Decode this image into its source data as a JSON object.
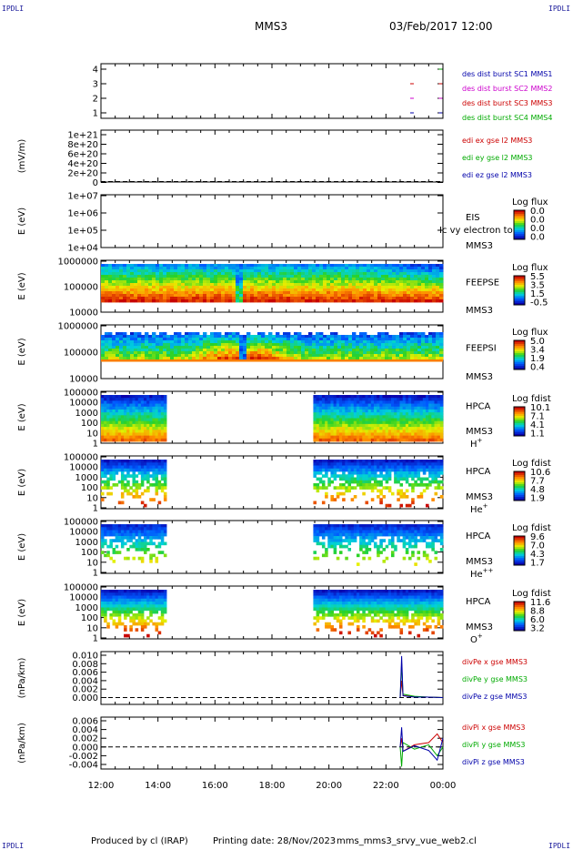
{
  "corner_labels": {
    "top_left": "IPDLI",
    "top_right": "IPDLI",
    "bottom_left": "IPDLI",
    "bottom_right": "IPDLI"
  },
  "header": {
    "title": "MMS3",
    "datetime": "03/Feb/2017 12:00"
  },
  "footer": {
    "produced_by": "Produced by cl (IRAP)",
    "printing_date": "Printing date: 28/Nov/2023",
    "plot_name": "mms_mms3_srvy_vue_web2.cl"
  },
  "overlay_text": "Ic vy electron to",
  "x_axis": {
    "ticks": [
      "12:00",
      "14:00",
      "16:00",
      "18:00",
      "20:00",
      "22:00",
      "00:00"
    ]
  },
  "chart_data": [
    {
      "type": "line",
      "panel": "burst",
      "yticks": [
        "4",
        "3",
        "2",
        "1"
      ],
      "ylim": [
        0.5,
        4.5
      ],
      "legend": [
        {
          "text": "des dist burst SC1 MMS1",
          "color": "#0000aa"
        },
        {
          "text": "des dist burst SC2 MMS2",
          "color": "#cc00cc"
        },
        {
          "text": "des dist burst SC3 MMS3",
          "color": "#cc0000"
        },
        {
          "text": "des dist burst SC4 MMS4",
          "color": "#00aa00"
        }
      ],
      "series": [
        {
          "name": "des dist burst SC1 MMS1",
          "level": 1,
          "hours": [
            22.85,
            23.85
          ]
        },
        {
          "name": "des dist burst SC2 MMS2",
          "level": 2,
          "hours": [
            22.85,
            23.85
          ]
        },
        {
          "name": "des dist burst SC3 MMS3",
          "level": 3,
          "hours": [
            22.85,
            23.85
          ]
        },
        {
          "name": "des dist burst SC4 MMS4",
          "level": 4,
          "hours": [
            23.85
          ]
        }
      ]
    },
    {
      "type": "line",
      "panel": "edi",
      "ylabel": "(mV/m)",
      "yticks": [
        "1e+21",
        "8e+20",
        "6e+20",
        "4e+20",
        "2e+20",
        "0"
      ],
      "ylim": [
        0,
        1e+21
      ],
      "legend": [
        {
          "text": "edi ex gse l2 MMS3",
          "color": "#cc0000"
        },
        {
          "text": "edi ey gse l2 MMS3",
          "color": "#00aa00"
        },
        {
          "text": "edi ez gse l2 MMS3",
          "color": "#0000aa"
        }
      ],
      "series": []
    },
    {
      "type": "heatmap",
      "panel": "eis",
      "ylabel": "E (eV)",
      "yticks": [
        "1e+07",
        "1e+06",
        "1e+05",
        "1e+04"
      ],
      "instrument": "EIS",
      "spacecraft": "MMS3",
      "colorbar": {
        "title": "Log flux",
        "ticks": [
          "0.0",
          "0.0",
          "0.0",
          "0.0"
        ]
      }
    },
    {
      "type": "heatmap",
      "panel": "feepse",
      "ylabel": "E (eV)",
      "yticks": [
        "1000000",
        "100000",
        "10000"
      ],
      "instrument": "FEEPSE",
      "spacecraft": "MMS3",
      "colorbar": {
        "title": "Log flux",
        "ticks": [
          "5.5",
          "3.5",
          "1.5",
          "-0.5"
        ]
      },
      "data_hours": [
        12.0,
        24.0
      ]
    },
    {
      "type": "heatmap",
      "panel": "feepsi",
      "ylabel": "E (eV)",
      "yticks": [
        "1000000",
        "100000",
        "10000"
      ],
      "instrument": "FEEPSI",
      "spacecraft": "MMS3",
      "colorbar": {
        "title": "Log flux",
        "ticks": [
          "5.0",
          "3.4",
          "1.9",
          "0.4"
        ]
      },
      "data_hours": [
        12.0,
        24.0
      ]
    },
    {
      "type": "heatmap",
      "panel": "hpca_h",
      "ylabel": "E (eV)",
      "yticks": [
        "100000",
        "10000",
        "1000",
        "100",
        "10",
        "1"
      ],
      "instrument": "HPCA",
      "spacecraft": "MMS3",
      "species": "H+",
      "colorbar": {
        "title": "Log fdist",
        "ticks": [
          "10.1",
          "7.1",
          "4.1",
          "1.1"
        ]
      },
      "data_hours": [
        [
          12.0,
          14.3
        ],
        [
          19.45,
          24.0
        ]
      ]
    },
    {
      "type": "heatmap",
      "panel": "hpca_he",
      "ylabel": "E (eV)",
      "yticks": [
        "100000",
        "10000",
        "1000",
        "100",
        "10",
        "1"
      ],
      "instrument": "HPCA",
      "spacecraft": "MMS3",
      "species": "He+",
      "colorbar": {
        "title": "Log fdist",
        "ticks": [
          "10.6",
          "7.7",
          "4.8",
          "1.9"
        ]
      },
      "data_hours": [
        [
          12.0,
          14.3
        ],
        [
          19.45,
          24.0
        ]
      ]
    },
    {
      "type": "heatmap",
      "panel": "hpca_he2",
      "ylabel": "E (eV)",
      "yticks": [
        "100000",
        "10000",
        "1000",
        "100",
        "10",
        "1"
      ],
      "instrument": "HPCA",
      "spacecraft": "MMS3",
      "species": "He++",
      "colorbar": {
        "title": "Log fdist",
        "ticks": [
          "9.6",
          "7.0",
          "4.3",
          "1.7"
        ]
      },
      "data_hours": [
        [
          12.0,
          14.3
        ],
        [
          19.45,
          24.0
        ]
      ]
    },
    {
      "type": "heatmap",
      "panel": "hpca_o",
      "ylabel": "E (eV)",
      "yticks": [
        "100000",
        "10000",
        "1000",
        "100",
        "10",
        "1"
      ],
      "instrument": "HPCA",
      "spacecraft": "MMS3",
      "species": "O+",
      "colorbar": {
        "title": "Log fdist",
        "ticks": [
          "11.6",
          "8.8",
          "6.0",
          "3.2"
        ]
      },
      "data_hours": [
        [
          12.0,
          14.3
        ],
        [
          19.45,
          24.0
        ]
      ]
    },
    {
      "type": "line",
      "panel": "divpe",
      "ylabel": "(nPa/km)",
      "yticks": [
        "0.010",
        "0.008",
        "0.006",
        "0.004",
        "0.002",
        "0.000"
      ],
      "ylim": [
        -0.001,
        0.01
      ],
      "legend": [
        {
          "text": "divPe x gse MMS3",
          "color": "#cc0000"
        },
        {
          "text": "divPe y gse MMS3",
          "color": "#00aa00"
        },
        {
          "text": "divPe z gse MMS3",
          "color": "#0000aa"
        }
      ],
      "series": [
        {
          "name": "divPe x gse MMS3",
          "x": [
            22.5,
            22.55,
            22.6,
            23.0,
            23.5,
            24.0
          ],
          "y": [
            0.0,
            0.004,
            0.0005,
            0.0002,
            0.0001,
            0.0
          ]
        },
        {
          "name": "divPe y gse MMS3",
          "x": [
            22.5,
            22.55,
            22.6,
            23.0,
            23.5,
            24.0
          ],
          "y": [
            0.0,
            0.008,
            0.0008,
            0.0003,
            0.0001,
            0.0
          ]
        },
        {
          "name": "divPe z gse MMS3",
          "x": [
            22.5,
            22.55,
            22.6,
            23.0,
            23.5,
            24.0
          ],
          "y": [
            0.0,
            0.0098,
            0.0004,
            0.0001,
            0.0001,
            0.0
          ]
        }
      ]
    },
    {
      "type": "line",
      "panel": "divpi",
      "ylabel": "(nPa/km)",
      "yticks": [
        "0.006",
        "0.004",
        "0.002",
        "0.000",
        "-0.002",
        "-0.004"
      ],
      "ylim": [
        -0.005,
        0.006
      ],
      "legend": [
        {
          "text": "divPi x gse MMS3",
          "color": "#cc0000"
        },
        {
          "text": "divPi y gse MMS3",
          "color": "#00aa00"
        },
        {
          "text": "divPi z gse MMS3",
          "color": "#0000aa"
        }
      ],
      "series": [
        {
          "name": "divPi x gse MMS3",
          "x": [
            22.5,
            22.55,
            22.6,
            23.0,
            23.5,
            23.8,
            24.0
          ],
          "y": [
            0.0,
            0.002,
            -0.001,
            0.0005,
            0.001,
            0.003,
            0.001
          ]
        },
        {
          "name": "divPi y gse MMS3",
          "x": [
            22.5,
            22.55,
            22.6,
            23.0,
            23.5,
            23.8,
            24.0
          ],
          "y": [
            0.0,
            -0.0045,
            0.001,
            -0.0005,
            0.0005,
            -0.002,
            0.0
          ]
        },
        {
          "name": "divPi z gse MMS3",
          "x": [
            22.5,
            22.55,
            22.6,
            23.0,
            23.5,
            23.8,
            24.0
          ],
          "y": [
            0.0,
            0.0045,
            -0.001,
            0.0003,
            -0.0008,
            -0.003,
            0.002
          ]
        }
      ]
    }
  ]
}
